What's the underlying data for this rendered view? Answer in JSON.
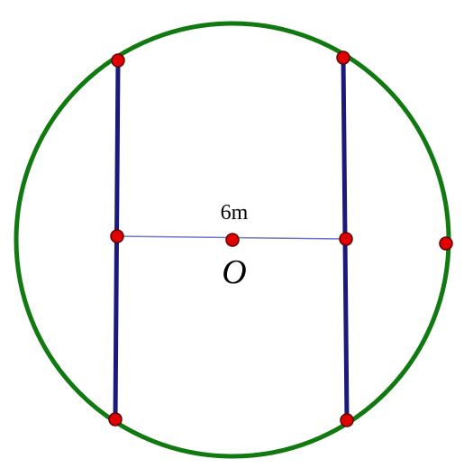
{
  "diagram": {
    "distance_label": "6m",
    "center_label": "O",
    "colors": {
      "circle": "#107a10",
      "chords": "#1a1a7a",
      "segment": "#6a78c8",
      "points": "#e00000",
      "point_outline": "#600000",
      "text": "#000000"
    }
  }
}
